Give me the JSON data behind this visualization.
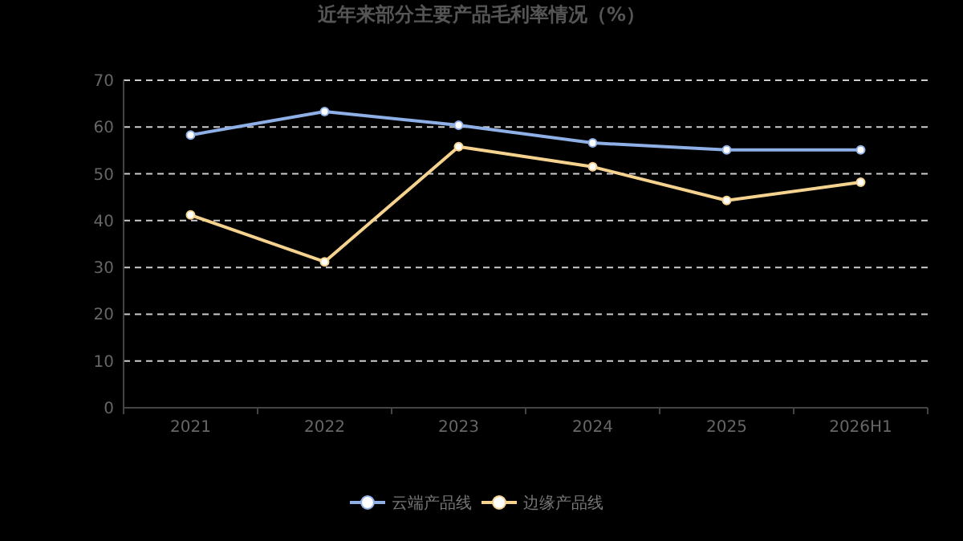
{
  "chart_data": {
    "type": "line",
    "title": "近年来部分主要产品毛利率情况（%）",
    "categories": [
      "2021",
      "2022",
      "2023",
      "2024",
      "2025",
      "2026H1"
    ],
    "series": [
      {
        "name": "云端产品线",
        "color": "#8fb0e6",
        "values": [
          58.3,
          63.3,
          60.4,
          56.6,
          55.1,
          55.1
        ]
      },
      {
        "name": "边缘产品线",
        "color": "#f5d38e",
        "values": [
          41.2,
          31.2,
          55.8,
          51.5,
          44.3,
          48.2
        ]
      }
    ],
    "ylim": [
      0,
      70
    ],
    "yticks": [
      0,
      10,
      20,
      30,
      40,
      50,
      60,
      70
    ],
    "grid": "y",
    "legend": "bottom",
    "marker": "circle",
    "line_style": "solid"
  }
}
